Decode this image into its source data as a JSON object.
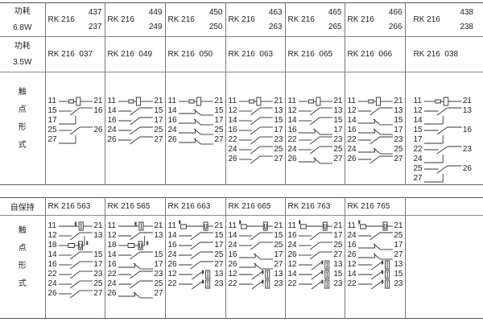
{
  "table1": {
    "power_68": {
      "label": "功耗",
      "value": "6.8W"
    },
    "power_35": {
      "label": "功耗",
      "value": "3.5W"
    },
    "contact_label": [
      "触",
      "点",
      "形",
      "式"
    ],
    "models_68": [
      {
        "prefix": "RK 216",
        "top": "437",
        "bottom": "237"
      },
      {
        "prefix": "RK 216",
        "top": "449",
        "bottom": "249"
      },
      {
        "prefix": "RK 216",
        "top": "450",
        "bottom": "250"
      },
      {
        "prefix": "RK 216",
        "top": "463",
        "bottom": "263"
      },
      {
        "prefix": "RK 216",
        "top": "465",
        "bottom": "265"
      },
      {
        "prefix": "RK 216",
        "top": "466",
        "bottom": "266"
      },
      {
        "prefix": "RK 216",
        "top": "438",
        "bottom": "238"
      }
    ],
    "models_35": [
      "RK 216  037",
      "RK 216  049",
      "RK 216  050",
      "RK 216  063",
      "RK 216  065",
      "RK 216  066",
      "RK 216  038"
    ],
    "diagrams": [
      [
        [
          "11",
          "coil",
          "21"
        ],
        [
          "15",
          "no",
          "16"
        ],
        [
          "17",
          "co",
          ""
        ],
        [
          "25",
          "no",
          "26"
        ],
        [
          "27",
          "co",
          ""
        ]
      ],
      [
        [
          "11",
          "coil",
          "21"
        ],
        [
          "14",
          "no",
          "15"
        ],
        [
          "16",
          "no",
          "17"
        ],
        [
          "24",
          "no",
          "25"
        ],
        [
          "26",
          "no",
          "27"
        ]
      ],
      [
        [
          "11",
          "coil",
          "21"
        ],
        [
          "14",
          "nc",
          "15"
        ],
        [
          "16",
          "nc",
          "17"
        ],
        [
          "24",
          "nc",
          "25"
        ],
        [
          "26",
          "nc",
          "27"
        ]
      ],
      [
        [
          "11",
          "coil",
          "21"
        ],
        [
          "12",
          "no",
          "13"
        ],
        [
          "14",
          "no",
          "15"
        ],
        [
          "16",
          "no",
          "17"
        ],
        [
          "22",
          "no",
          "23"
        ],
        [
          "24",
          "no",
          "25"
        ],
        [
          "26",
          "no",
          "27"
        ]
      ],
      [
        [
          "11",
          "coil",
          "21"
        ],
        [
          "12",
          "no",
          "13"
        ],
        [
          "14",
          "no",
          "15"
        ],
        [
          "16",
          "nc",
          "17"
        ],
        [
          "22",
          "no",
          "23"
        ],
        [
          "24",
          "no",
          "25"
        ],
        [
          "26",
          "nc",
          "27"
        ]
      ],
      [
        [
          "11",
          "coil",
          "21"
        ],
        [
          "12",
          "no",
          "13"
        ],
        [
          "14",
          "nc",
          "15"
        ],
        [
          "16",
          "nc",
          "17"
        ],
        [
          "22",
          "no",
          "23"
        ],
        [
          "24",
          "nc",
          "25"
        ],
        [
          "26",
          "no",
          "27"
        ]
      ],
      [
        [
          "11",
          "coil",
          "21"
        ],
        [
          "12",
          "no",
          "13"
        ],
        [
          "14",
          "co",
          ""
        ],
        [
          "15",
          "no",
          "16"
        ],
        [
          "17",
          "co",
          ""
        ],
        [
          "22",
          "no",
          "23"
        ],
        [
          "24",
          "co",
          ""
        ],
        [
          "25",
          "no",
          "26"
        ],
        [
          "27",
          "co",
          ""
        ]
      ]
    ]
  },
  "table2": {
    "label": "自保持",
    "contact_label": [
      "触",
      "点",
      "形",
      "式"
    ],
    "models": [
      "RK 216 563",
      "RK 216 565",
      "RK 216 663",
      "RK 216 665",
      "RK 216 763",
      "RK 216 765",
      ""
    ],
    "diagrams": [
      [
        [
          "11",
          "coilI",
          "21"
        ],
        [
          "12",
          "no",
          "13"
        ],
        [
          "18",
          "coilU",
          ""
        ],
        [
          "14",
          "no",
          "15"
        ],
        [
          "16",
          "no",
          "17"
        ],
        [
          "22",
          "no",
          "23"
        ],
        [
          "24",
          "no",
          "25"
        ],
        [
          "26",
          "no",
          "27"
        ]
      ],
      [
        [
          "11",
          "coilI",
          "21"
        ],
        [
          "12",
          "no",
          "13"
        ],
        [
          "18",
          "coilU",
          ""
        ],
        [
          "14",
          "no",
          "15"
        ],
        [
          "16",
          "nc",
          "17"
        ],
        [
          "22",
          "no",
          "23"
        ],
        [
          "24",
          "no",
          "25"
        ],
        [
          "26",
          "nc",
          "27"
        ]
      ],
      [
        [
          "11",
          "coilUtop",
          "21"
        ],
        [
          "14",
          "no",
          "15"
        ],
        [
          "16",
          "no",
          "17"
        ],
        [
          "24",
          "no",
          "25"
        ],
        [
          "26",
          "no",
          "27"
        ],
        [
          "12",
          "latch",
          "13"
        ],
        [
          "22",
          "latch",
          "23"
        ]
      ],
      [
        [
          "11",
          "coilUtop",
          "21"
        ],
        [
          "14",
          "no",
          "15"
        ],
        [
          "24",
          "no",
          "25"
        ],
        [
          "16",
          "nc",
          "17"
        ],
        [
          "26",
          "nc",
          "27"
        ],
        [
          "12",
          "latch",
          "13"
        ],
        [
          "22",
          "latch",
          "23"
        ]
      ],
      [
        [
          "11",
          "coilUtop",
          "21"
        ],
        [
          "16",
          "no",
          "17"
        ],
        [
          "24",
          "no",
          "25"
        ],
        [
          "26",
          "no",
          "27"
        ],
        [
          "12",
          "latch",
          "13"
        ],
        [
          "14",
          "latch",
          "15"
        ],
        [
          "22",
          "latch",
          "23"
        ]
      ],
      [
        [
          "11",
          "coilUtop",
          "21"
        ],
        [
          "24",
          "no",
          "25"
        ],
        [
          "16",
          "nc",
          "17"
        ],
        [
          "26",
          "nc",
          "27"
        ],
        [
          "12",
          "latch",
          "13"
        ],
        [
          "14",
          "latch",
          "15"
        ],
        [
          "22",
          "latch",
          "23"
        ]
      ],
      []
    ]
  }
}
